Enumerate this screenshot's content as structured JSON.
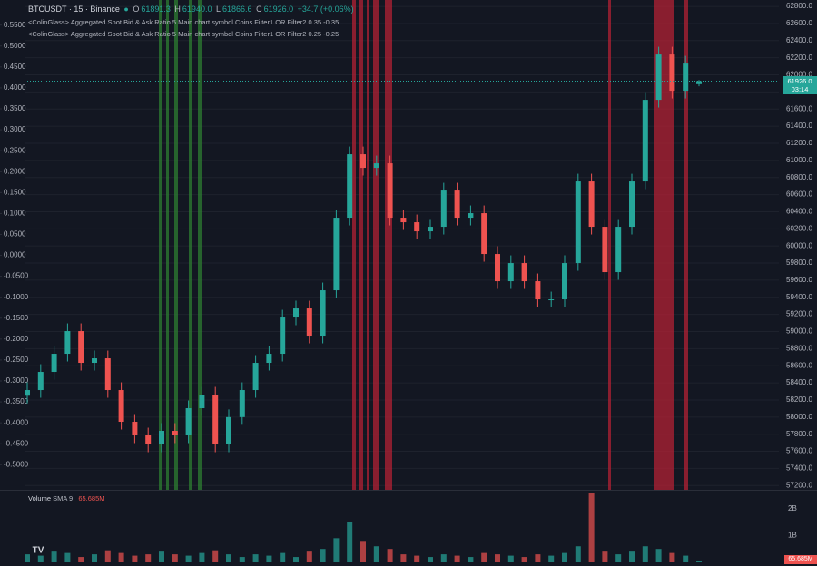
{
  "header": {
    "symbol": "BTCUSDT · 15 · Binance",
    "ohlc": [
      {
        "key": "O",
        "value": "61891.3"
      },
      {
        "key": "H",
        "value": "61940.0"
      },
      {
        "key": "L",
        "value": "61866.6"
      },
      {
        "key": "C",
        "value": "61926.0"
      }
    ],
    "change": "+34.7 (+0.06%)"
  },
  "indicators": [
    "<ColinGlass> Aggregated Spot Bid & Ask Ratio 5 Main chart symbol Coins Filter1 OR Filter2 0.35 -0.35",
    "<ColinGlass> Aggregated Spot Bid & Ask Ratio 5 Main chart symbol Coins Filter1 OR Filter2 0.25 -0.25"
  ],
  "price_tag": {
    "price": "61926.0",
    "countdown": "03:14"
  },
  "chart_data": [
    {
      "type": "candlestick",
      "up_color": "#26a69a",
      "down_color": "#ef5350",
      "open": [
        58250,
        58316,
        58528,
        58740,
        59005,
        58634,
        58687,
        58316,
        57945,
        57786,
        57680,
        57839,
        57786,
        58104,
        58263,
        57680,
        58000,
        58316,
        58634,
        58740,
        59164,
        59270,
        58952,
        59482,
        60330,
        61072,
        60913,
        60966,
        60330,
        60277,
        60171,
        60224,
        60648,
        60330,
        60383,
        59906,
        59588,
        59800,
        59588,
        59376,
        59376,
        59800,
        60754,
        60224,
        59694,
        60224,
        60754,
        61708,
        62238,
        61814,
        61891.3
      ],
      "high": [
        58406,
        58618,
        58830,
        59095,
        59095,
        58777,
        58777,
        58406,
        58035,
        57876,
        57929,
        57929,
        58194,
        58353,
        58353,
        58090,
        58406,
        58724,
        58830,
        59254,
        59360,
        59360,
        59572,
        60420,
        61162,
        61162,
        61056,
        61056,
        60420,
        60367,
        60314,
        60738,
        60738,
        60473,
        60473,
        59996,
        59890,
        59890,
        59678,
        59466,
        59890,
        60844,
        60844,
        60314,
        60314,
        60844,
        61798,
        62328,
        62328,
        62222,
        61940
      ],
      "low": [
        58160,
        58226,
        58438,
        58650,
        58544,
        58544,
        58226,
        57855,
        57696,
        57590,
        57590,
        57696,
        57696,
        58014,
        57590,
        57590,
        57910,
        58226,
        58544,
        58650,
        59074,
        58862,
        58862,
        59392,
        60240,
        60823,
        60823,
        60240,
        60187,
        60081,
        60081,
        60134,
        60240,
        60240,
        59816,
        59498,
        59498,
        59498,
        59286,
        59286,
        59286,
        59710,
        60134,
        59604,
        59604,
        60134,
        60664,
        61618,
        61724,
        61724,
        61866.6
      ],
      "close": [
        58316,
        58528,
        58740,
        59005,
        58634,
        58687,
        58316,
        57945,
        57786,
        57680,
        57839,
        57786,
        58104,
        58263,
        57680,
        58000,
        58316,
        58634,
        58740,
        59164,
        59270,
        58952,
        59482,
        60330,
        61072,
        60913,
        60966,
        60330,
        60277,
        60171,
        60224,
        60648,
        60330,
        60383,
        59906,
        59588,
        59800,
        59588,
        59376,
        59376,
        59800,
        60754,
        60224,
        59694,
        60224,
        60754,
        61708,
        62238,
        61814,
        62132,
        61926
      ],
      "ylim": [
        57150,
        62875
      ],
      "yticks": [
        {
          "value": 57200,
          "label": "57200.0"
        },
        {
          "value": 57400,
          "label": "57400.0"
        },
        {
          "value": 57600,
          "label": "57600.0"
        },
        {
          "value": 57800,
          "label": "57800.0"
        },
        {
          "value": 58000,
          "label": "58000.0"
        },
        {
          "value": 58200,
          "label": "58200.0"
        },
        {
          "value": 58400,
          "label": "58400.0"
        },
        {
          "value": 58600,
          "label": "58600.0"
        },
        {
          "value": 58800,
          "label": "58800.0"
        },
        {
          "value": 59000,
          "label": "59000.0"
        },
        {
          "value": 59200,
          "label": "59200.0"
        },
        {
          "value": 59400,
          "label": "59400.0"
        },
        {
          "value": 59600,
          "label": "59600.0"
        },
        {
          "value": 59800,
          "label": "59800.0"
        },
        {
          "value": 60000,
          "label": "60000.0"
        },
        {
          "value": 60200,
          "label": "60200.0"
        },
        {
          "value": 60400,
          "label": "60400.0"
        },
        {
          "value": 60600,
          "label": "60600.0"
        },
        {
          "value": 60800,
          "label": "60800.0"
        },
        {
          "value": 61000,
          "label": "61000.0"
        },
        {
          "value": 61200,
          "label": "61200.0"
        },
        {
          "value": 61400,
          "label": "61400.0"
        },
        {
          "value": 61600,
          "label": "61600.0"
        },
        {
          "value": 61800,
          "label": "61800.0"
        },
        {
          "value": 62000,
          "label": "62000.0"
        },
        {
          "value": 62200,
          "label": "62200.0"
        },
        {
          "value": 62400,
          "label": "62400.0"
        },
        {
          "value": 62600,
          "label": "62600.0"
        },
        {
          "value": 62800,
          "label": "62800.0"
        }
      ],
      "y2lim": [
        -0.56,
        0.61
      ],
      "y2ticks": [
        {
          "value": 0.55,
          "label": "0.5500"
        },
        {
          "value": 0.5,
          "label": "0.5000"
        },
        {
          "value": 0.45,
          "label": "0.4500"
        },
        {
          "value": 0.4,
          "label": "0.4000"
        },
        {
          "value": 0.35,
          "label": "0.3500"
        },
        {
          "value": 0.3,
          "label": "0.3000"
        },
        {
          "value": 0.25,
          "label": "0.2500"
        },
        {
          "value": 0.2,
          "label": "0.2000"
        },
        {
          "value": 0.15,
          "label": "0.1500"
        },
        {
          "value": 0.1,
          "label": "0.1000"
        },
        {
          "value": 0.05,
          "label": "0.0500"
        },
        {
          "value": 0,
          "label": "0.0000"
        },
        {
          "value": -0.05,
          "label": "-0.0500"
        },
        {
          "value": -0.1,
          "label": "-0.1000"
        },
        {
          "value": -0.15,
          "label": "-0.1500"
        },
        {
          "value": -0.2,
          "label": "-0.2000"
        },
        {
          "value": -0.25,
          "label": "-0.2500"
        },
        {
          "value": -0.3,
          "label": "-0.3000"
        },
        {
          "value": -0.35,
          "label": "-0.3500"
        },
        {
          "value": -0.4,
          "label": "-0.4000"
        },
        {
          "value": -0.45,
          "label": "-0.4500"
        },
        {
          "value": -0.5,
          "label": "-0.5000"
        }
      ]
    },
    {
      "type": "bar",
      "title": "Volume",
      "subtitle": "SMA 9",
      "sma_label": "65.685M",
      "values": [
        300000000,
        250000000,
        400000000,
        350000000,
        200000000,
        300000000,
        450000000,
        350000000,
        250000000,
        300000000,
        400000000,
        300000000,
        250000000,
        350000000,
        450000000,
        300000000,
        200000000,
        300000000,
        250000000,
        350000000,
        200000000,
        400000000,
        500000000,
        900000000,
        1500000000,
        800000000,
        600000000,
        500000000,
        300000000,
        250000000,
        200000000,
        300000000,
        250000000,
        200000000,
        350000000,
        300000000,
        250000000,
        200000000,
        300000000,
        250000000,
        350000000,
        600000000,
        2600000000,
        400000000,
        300000000,
        400000000,
        600000000,
        500000000,
        350000000,
        250000000,
        65685000
      ],
      "ylim": [
        0,
        2600000000
      ],
      "yticks": [
        {
          "value": 2000000000,
          "label": "2B"
        },
        {
          "value": 1000000000,
          "label": "1B"
        }
      ]
    }
  ]
}
